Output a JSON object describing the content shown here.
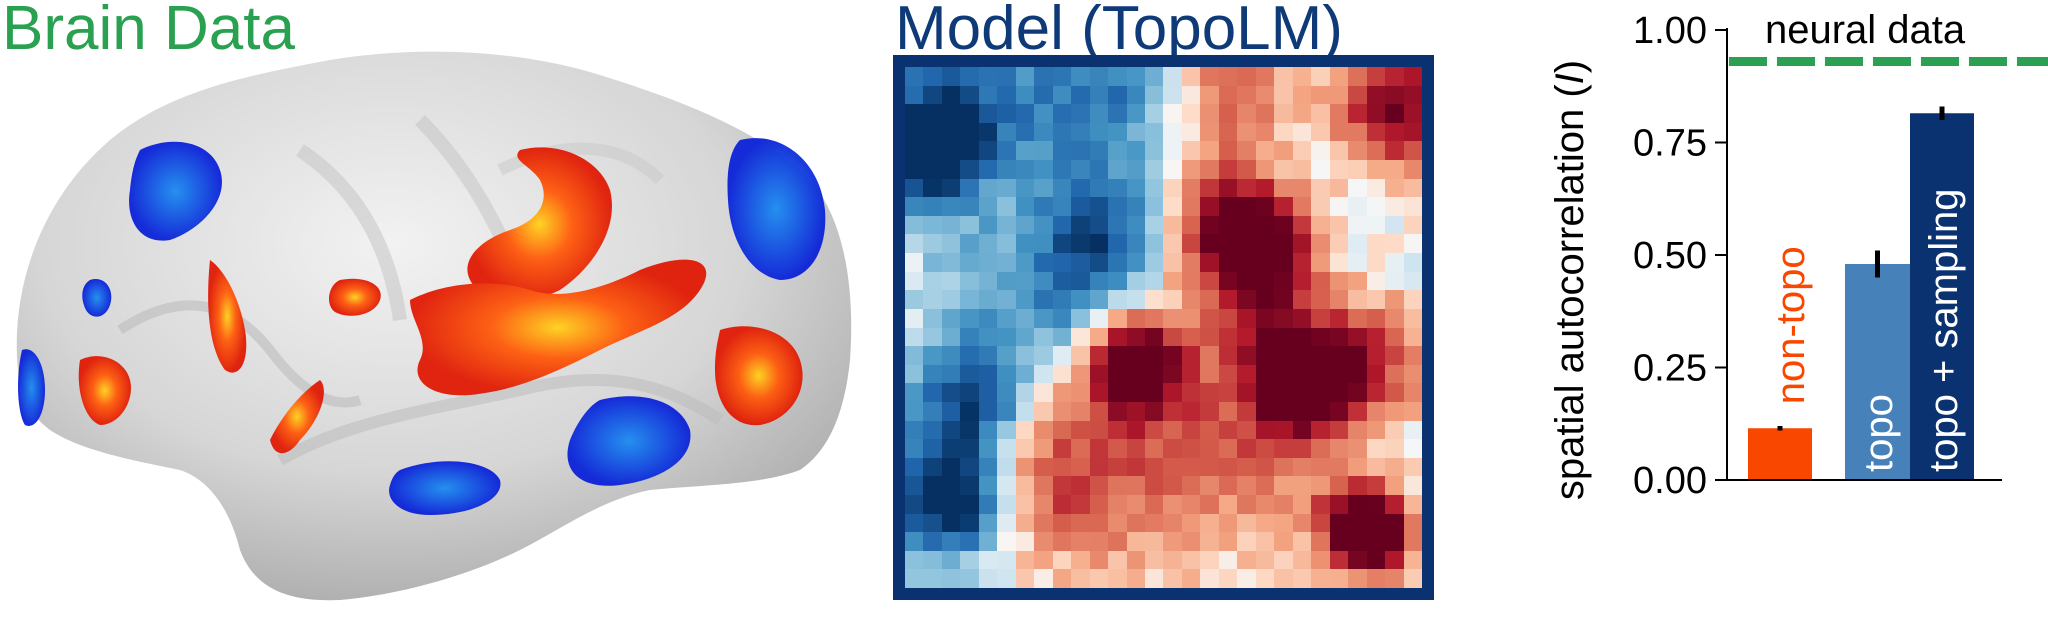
{
  "panels": {
    "brain": {
      "title": "Brain Data",
      "title_color": "#2aa150"
    },
    "model": {
      "title": "Model (TopoLM)",
      "title_color": "#0f3a78",
      "frame_color": "#0b3270"
    }
  },
  "heatmap": {
    "rows": 28,
    "cols": 28,
    "colormap": "RdBu_r",
    "description": "28x28 grid of model unit selectivity; blue cluster upper-left and lower-left, red clusters center-right and lower-right"
  },
  "chart_data": {
    "type": "bar",
    "title": "",
    "xlabel": "",
    "ylabel": "spatial autocorrelation (I)",
    "ylabel_parts": {
      "text": "spatial autocorrelation (",
      "italic": "I",
      "close": ")"
    },
    "ylim": [
      0,
      1.0
    ],
    "yticks": [
      0.0,
      0.25,
      0.5,
      0.75,
      1.0
    ],
    "ytick_labels": [
      "0.00",
      "0.25",
      "0.50",
      "0.75",
      "1.00"
    ],
    "categories": [
      "non-topo",
      "topo",
      "topo + sampling"
    ],
    "values": [
      0.115,
      0.48,
      0.815
    ],
    "errors": [
      [
        0.11,
        0.12
      ],
      [
        0.45,
        0.51
      ],
      [
        0.8,
        0.83
      ]
    ],
    "colors": [
      "#f94700",
      "#4682b9",
      "#0b3270"
    ],
    "label_colors": [
      "#f94700",
      "#ffffff",
      "#ffffff"
    ],
    "reference_line": {
      "label": "neural data",
      "value": 0.93,
      "color": "#2aa150",
      "style": "dashed"
    },
    "grid": false,
    "legend": "none"
  }
}
